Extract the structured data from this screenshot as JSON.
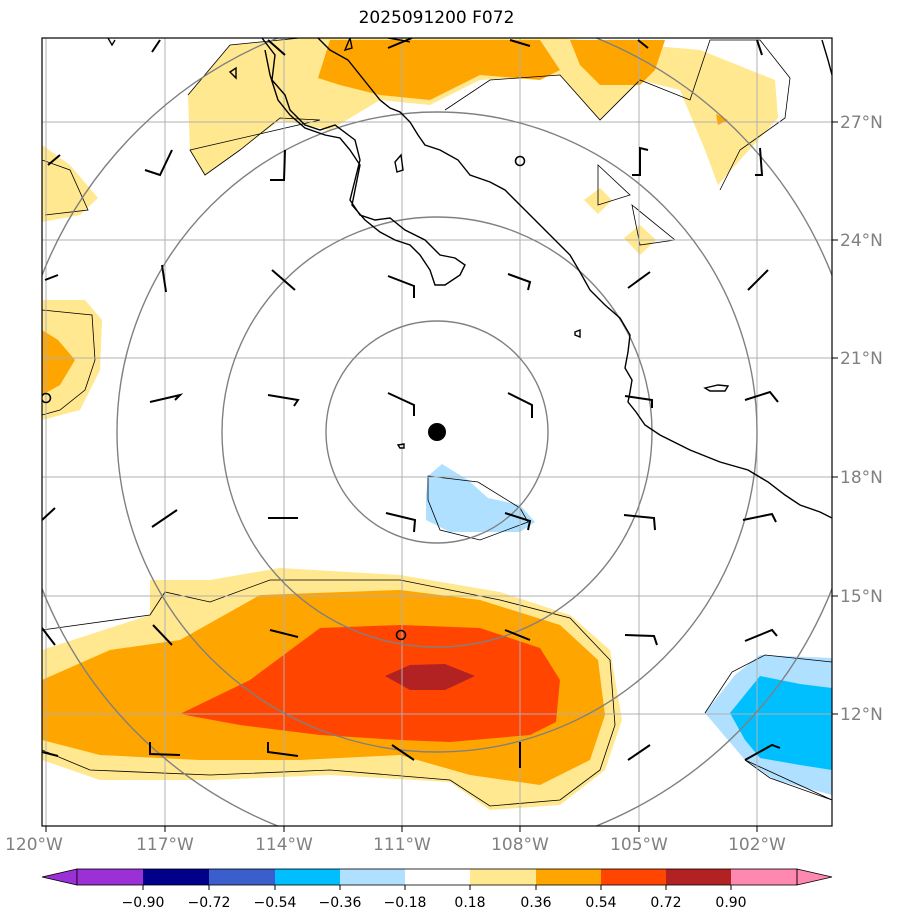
{
  "title": "2025091200 F072",
  "lon_labels": [
    "120°W",
    "117°W",
    "114°W",
    "111°W",
    "108°W",
    "105°W",
    "102°W"
  ],
  "lat_labels": [
    "27°N",
    "24°N",
    "21°N",
    "18°N",
    "15°N",
    "12°N"
  ],
  "colorbar": {
    "ticks": [
      "−0.90",
      "−0.72",
      "−0.54",
      "−0.36",
      "−0.18",
      "0.18",
      "0.36",
      "0.54",
      "0.72",
      "0.90"
    ],
    "colors": [
      "#9b30d6",
      "#00008b",
      "#3a5fcd",
      "#00bfff",
      "#b0e0ff",
      "#ffffff",
      "#ffe890",
      "#ffa500",
      "#ff4500",
      "#b22222",
      "#ff88b0"
    ]
  },
  "center_marker": {
    "lat": 19.1,
    "lon": -109.9
  }
}
